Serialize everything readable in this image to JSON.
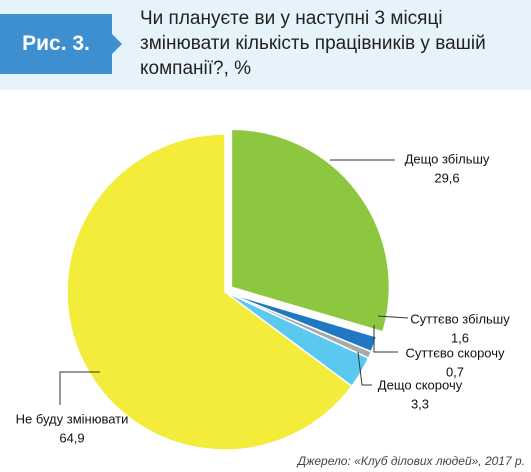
{
  "figure_label": "Рис. 3.",
  "chart_data": {
    "type": "pie",
    "title": "Чи плануєте ви у наступні 3 місяці змінювати кількість працівників у вашій компанії?, %",
    "categories": [
      "Дещо збільшу",
      "Суттєво збільшу",
      "Суттєво скорочу",
      "Дещо скорочу",
      "Не буду змінювати"
    ],
    "values": [
      29.6,
      1.6,
      0.7,
      3.3,
      64.9
    ],
    "value_labels": [
      "29,6",
      "1,6",
      "0,7",
      "3,3",
      "64,9"
    ],
    "colors": [
      "#8dc63f",
      "#1f78c1",
      "#a7a9ac",
      "#5bc8f0",
      "#f4ec3b"
    ],
    "exploded": [
      true,
      false,
      false,
      false,
      false
    ]
  },
  "source": "Джерело: «Клуб ділових людей», 2017 р."
}
